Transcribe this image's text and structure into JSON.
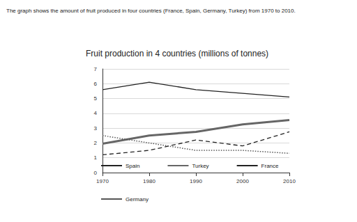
{
  "chart_data": {
    "type": "line",
    "subtitle": "The graph shows the amount of fruit produced in four countries (France, Spain, Germany, Turkey) from 1970 to 2010.",
    "title": "Fruit production in 4 countries (millions of tonnes)",
    "categories": [
      "1970",
      "1980",
      "1990",
      "2000",
      "2010"
    ],
    "series": [
      {
        "name": "Spain",
        "color": "#222222",
        "line_style": "solid",
        "values": [
          5.6,
          6.1,
          5.6,
          5.35,
          5.1
        ]
      },
      {
        "name": "Turkey",
        "color": "#666666",
        "line_style": "double",
        "values": [
          1.95,
          2.5,
          2.75,
          3.25,
          3.55
        ]
      },
      {
        "name": "France",
        "color": "#222222",
        "line_style": "dashed",
        "values": [
          1.2,
          1.5,
          2.2,
          1.8,
          2.75
        ]
      },
      {
        "name": "Germany",
        "color": "#555555",
        "line_style": "dotted",
        "values": [
          2.5,
          2.0,
          1.5,
          1.5,
          1.3
        ]
      }
    ],
    "ylim": [
      0,
      7
    ],
    "yticks": [
      0,
      1,
      2,
      3,
      4,
      5,
      6,
      7
    ],
    "grid": true,
    "legend": "bottom"
  }
}
